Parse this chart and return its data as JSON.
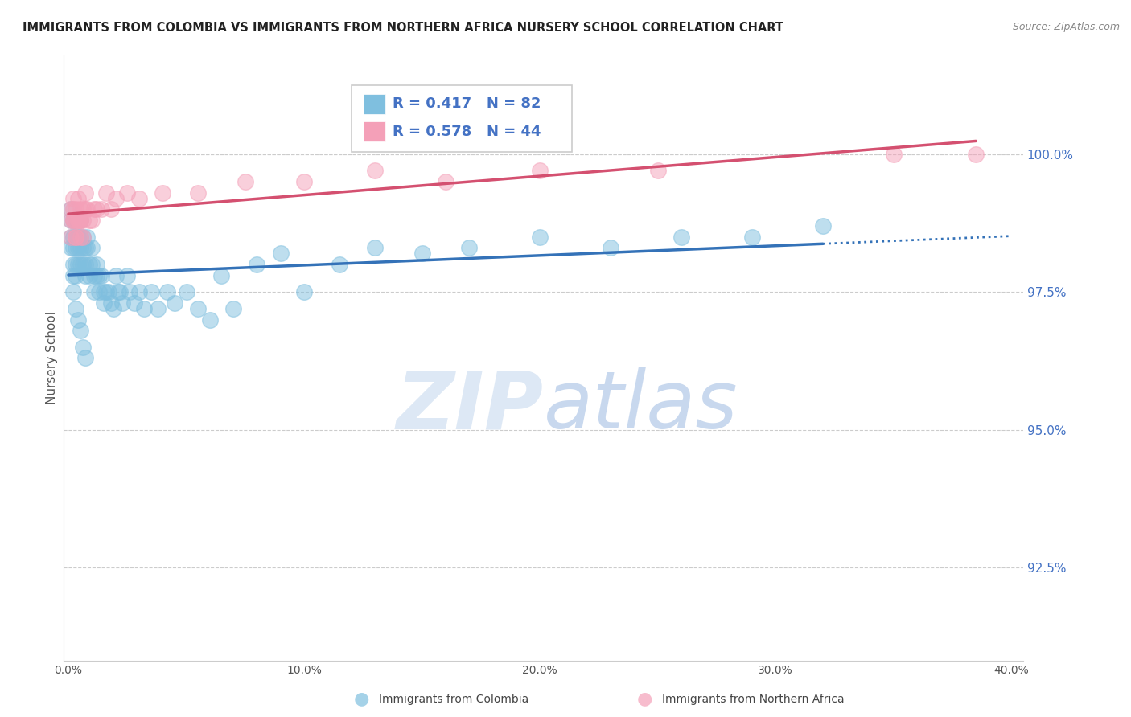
{
  "title": "IMMIGRANTS FROM COLOMBIA VS IMMIGRANTS FROM NORTHERN AFRICA NURSERY SCHOOL CORRELATION CHART",
  "source_text": "Source: ZipAtlas.com",
  "ylabel": "Nursery School",
  "xlim": [
    -0.002,
    0.405
  ],
  "ylim": [
    0.908,
    1.018
  ],
  "yticks": [
    0.925,
    0.95,
    0.975,
    1.0
  ],
  "ytick_labels": [
    "92.5%",
    "95.0%",
    "97.5%",
    "100.0%"
  ],
  "xticks": [
    0.0,
    0.1,
    0.2,
    0.3,
    0.4
  ],
  "xtick_labels": [
    "0.0%",
    "10.0%",
    "20.0%",
    "30.0%",
    "40.0%"
  ],
  "colombia_R": 0.417,
  "colombia_N": 82,
  "n_africa_R": 0.578,
  "n_africa_N": 44,
  "colombia_color": "#7fbfdf",
  "n_africa_color": "#f4a0b8",
  "trend_colombia_color": "#3472b8",
  "trend_n_africa_color": "#d45070",
  "watermark_color": "#dde8f5",
  "legend_border_color": "#cccccc",
  "grid_color": "#cccccc",
  "ytick_color": "#4472c4",
  "xtick_color": "#555555",
  "colombia_x": [
    0.001,
    0.001,
    0.001,
    0.001,
    0.002,
    0.002,
    0.002,
    0.002,
    0.002,
    0.003,
    0.003,
    0.003,
    0.003,
    0.003,
    0.004,
    0.004,
    0.004,
    0.005,
    0.005,
    0.005,
    0.005,
    0.006,
    0.006,
    0.006,
    0.007,
    0.007,
    0.007,
    0.008,
    0.008,
    0.009,
    0.009,
    0.01,
    0.01,
    0.011,
    0.011,
    0.012,
    0.012,
    0.013,
    0.013,
    0.014,
    0.015,
    0.015,
    0.016,
    0.017,
    0.018,
    0.019,
    0.02,
    0.021,
    0.022,
    0.023,
    0.025,
    0.026,
    0.028,
    0.03,
    0.032,
    0.035,
    0.038,
    0.042,
    0.045,
    0.05,
    0.055,
    0.06,
    0.065,
    0.07,
    0.08,
    0.09,
    0.1,
    0.115,
    0.13,
    0.15,
    0.17,
    0.2,
    0.23,
    0.26,
    0.29,
    0.32,
    0.002,
    0.003,
    0.004,
    0.005,
    0.006,
    0.007
  ],
  "colombia_y": [
    0.99,
    0.988,
    0.985,
    0.983,
    0.988,
    0.985,
    0.983,
    0.98,
    0.978,
    0.988,
    0.985,
    0.983,
    0.98,
    0.978,
    0.985,
    0.983,
    0.98,
    0.988,
    0.985,
    0.983,
    0.98,
    0.985,
    0.983,
    0.98,
    0.983,
    0.98,
    0.978,
    0.985,
    0.983,
    0.98,
    0.978,
    0.983,
    0.98,
    0.978,
    0.975,
    0.98,
    0.978,
    0.978,
    0.975,
    0.978,
    0.975,
    0.973,
    0.975,
    0.975,
    0.973,
    0.972,
    0.978,
    0.975,
    0.975,
    0.973,
    0.978,
    0.975,
    0.973,
    0.975,
    0.972,
    0.975,
    0.972,
    0.975,
    0.973,
    0.975,
    0.972,
    0.97,
    0.978,
    0.972,
    0.98,
    0.982,
    0.975,
    0.98,
    0.983,
    0.982,
    0.983,
    0.985,
    0.983,
    0.985,
    0.985,
    0.987,
    0.975,
    0.972,
    0.97,
    0.968,
    0.965,
    0.963
  ],
  "n_africa_x": [
    0.001,
    0.001,
    0.002,
    0.002,
    0.002,
    0.003,
    0.003,
    0.003,
    0.004,
    0.004,
    0.005,
    0.005,
    0.005,
    0.006,
    0.006,
    0.007,
    0.007,
    0.008,
    0.009,
    0.01,
    0.011,
    0.012,
    0.014,
    0.016,
    0.018,
    0.02,
    0.025,
    0.03,
    0.04,
    0.055,
    0.075,
    0.1,
    0.13,
    0.16,
    0.2,
    0.25,
    0.001,
    0.002,
    0.003,
    0.004,
    0.005,
    0.006,
    0.35,
    0.385
  ],
  "n_africa_y": [
    0.99,
    0.988,
    0.992,
    0.99,
    0.988,
    0.99,
    0.988,
    0.985,
    0.992,
    0.988,
    0.99,
    0.988,
    0.985,
    0.99,
    0.988,
    0.993,
    0.99,
    0.99,
    0.988,
    0.988,
    0.99,
    0.99,
    0.99,
    0.993,
    0.99,
    0.992,
    0.993,
    0.992,
    0.993,
    0.993,
    0.995,
    0.995,
    0.997,
    0.995,
    0.997,
    0.997,
    0.985,
    0.988,
    0.985,
    0.988,
    0.988,
    0.985,
    1.0,
    1.0
  ]
}
